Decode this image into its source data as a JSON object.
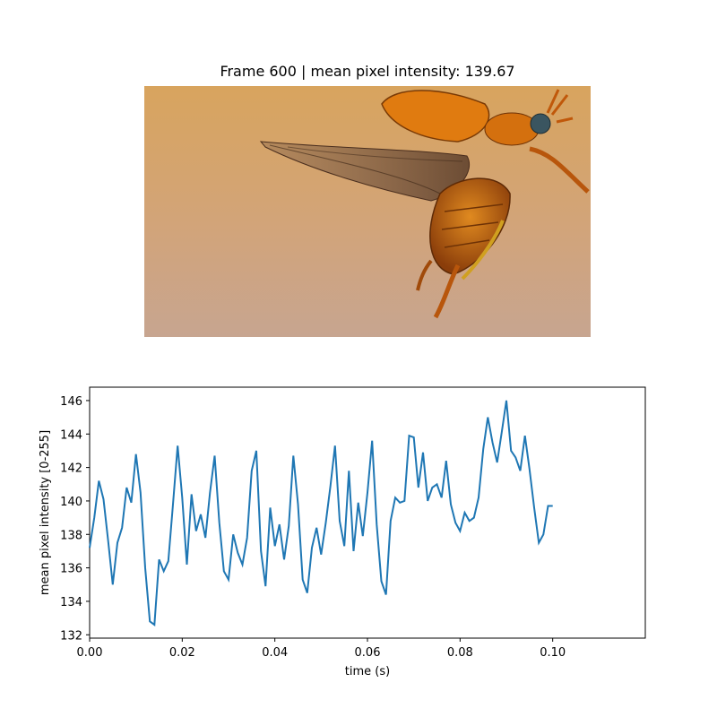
{
  "image": {
    "title": "Frame 600 | mean pixel intensity: 139.67",
    "subject": "beetle in flight with wings spread",
    "background_colors": [
      "#d8a45e",
      "#c7a590"
    ]
  },
  "chart_data": {
    "type": "line",
    "xlabel": "time (s)",
    "ylabel": "mean pixel intensity [0-255]",
    "xlim": [
      0,
      0.12
    ],
    "ylim": [
      131.8,
      146.8
    ],
    "xticks": [
      0.0,
      0.02,
      0.04,
      0.06,
      0.08,
      0.1
    ],
    "xtick_labels": [
      "0.00",
      "0.02",
      "0.04",
      "0.06",
      "0.08",
      "0.10"
    ],
    "yticks": [
      132,
      134,
      136,
      138,
      140,
      142,
      144,
      146
    ],
    "ytick_labels": [
      "132",
      "134",
      "136",
      "138",
      "140",
      "142",
      "144",
      "146"
    ],
    "line_color": "#1f77b4",
    "grid": false,
    "series": [
      {
        "x": [
          0.0,
          0.001,
          0.002,
          0.003,
          0.004,
          0.005,
          0.006,
          0.007,
          0.008,
          0.009,
          0.01,
          0.011,
          0.012,
          0.013,
          0.014,
          0.015,
          0.016,
          0.017,
          0.018,
          0.019,
          0.02,
          0.021,
          0.022,
          0.023,
          0.024,
          0.025,
          0.026,
          0.027,
          0.028,
          0.029,
          0.03,
          0.031,
          0.032,
          0.033,
          0.034,
          0.035,
          0.036,
          0.037,
          0.038,
          0.039,
          0.04,
          0.041,
          0.042,
          0.043,
          0.044,
          0.045,
          0.046,
          0.047,
          0.048,
          0.049,
          0.05,
          0.051,
          0.052,
          0.053,
          0.054,
          0.055,
          0.056,
          0.057,
          0.058,
          0.059,
          0.06,
          0.061,
          0.062,
          0.063,
          0.064,
          0.065,
          0.066,
          0.067,
          0.068,
          0.069,
          0.07,
          0.071,
          0.072,
          0.073,
          0.074,
          0.075,
          0.076,
          0.077,
          0.078,
          0.079,
          0.08,
          0.081,
          0.082,
          0.083,
          0.084,
          0.085,
          0.086,
          0.087,
          0.088,
          0.089,
          0.09,
          0.091,
          0.092,
          0.093,
          0.094,
          0.095,
          0.096,
          0.097,
          0.098,
          0.099,
          0.1
        ],
        "y": [
          137.2,
          139.0,
          141.2,
          140.1,
          137.6,
          135.0,
          137.5,
          138.4,
          140.8,
          139.9,
          142.8,
          140.5,
          136.0,
          132.8,
          132.6,
          136.5,
          135.8,
          136.4,
          139.8,
          143.3,
          140.2,
          136.2,
          140.4,
          138.2,
          139.2,
          137.8,
          140.5,
          142.7,
          138.7,
          135.8,
          135.3,
          138.0,
          136.9,
          136.2,
          137.8,
          141.8,
          143.0,
          137.0,
          134.9,
          139.6,
          137.3,
          138.6,
          136.5,
          138.5,
          142.7,
          139.8,
          135.3,
          134.5,
          137.2,
          138.4,
          136.8,
          138.7,
          140.9,
          143.3,
          138.8,
          137.3,
          141.8,
          137.0,
          139.9,
          137.9,
          140.5,
          143.6,
          138.6,
          135.2,
          134.4,
          138.8,
          140.2,
          139.9,
          140.0,
          143.9,
          143.8,
          140.8,
          142.9,
          140.0,
          140.8,
          141.0,
          140.2,
          142.4,
          139.8,
          138.7,
          138.2,
          139.3,
          138.8,
          139.0,
          140.2,
          143.1,
          145.0,
          143.5,
          142.3,
          144.1,
          146.0,
          143.0,
          142.6,
          141.8,
          143.9,
          141.9,
          139.6,
          137.5,
          138.0,
          139.7,
          139.7
        ]
      }
    ]
  }
}
